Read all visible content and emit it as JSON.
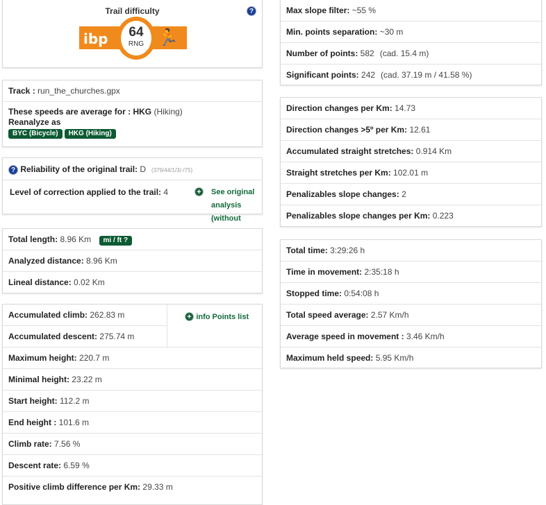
{
  "difficulty": {
    "title": "Trail difficulty",
    "score": "64",
    "unit": "RNG",
    "logo": "ibp",
    "colors": {
      "badge": "#f08a1c"
    }
  },
  "track": {
    "label": "Track :",
    "value": "run_the_churches.gpx"
  },
  "speeds": {
    "label": "These speeds are average for :",
    "code": "HKG",
    "mode": "(Hiking)",
    "reanalyze": "Reanalyze as",
    "buttons": [
      "BYC (Bicycle)",
      "HKG (Hiking)"
    ]
  },
  "reliability": {
    "label": "Reliability of the original trail:",
    "value": "D",
    "detail": "(379/44/1/3/-/75)"
  },
  "correction": {
    "label": "Level of correction applied to the trail:",
    "value": "4",
    "link": "See original analysis (without corrections)"
  },
  "lengths": [
    {
      "label": "Total length:",
      "value": "8.96 Km",
      "button": "mi / ft ?"
    },
    {
      "label": "Analyzed distance:",
      "value": "8.96 Km"
    },
    {
      "label": "Lineal distance:",
      "value": "0.02 Km"
    }
  ],
  "climb": [
    {
      "label": "Accumulated climb:",
      "value": "262.83 m"
    },
    {
      "label": "Accumulated descent:",
      "value": "275.74 m"
    }
  ],
  "points_link": "info Points list",
  "heights": [
    {
      "label": "Maximum height:",
      "value": "220.7 m"
    },
    {
      "label": "Minimal height:",
      "value": "23.22 m"
    },
    {
      "label": "Start height:",
      "value": "112.2 m"
    },
    {
      "label": "End height :",
      "value": "101.6 m"
    },
    {
      "label": "Climb rate:",
      "value": "7.56 %"
    },
    {
      "label": "Descent rate:",
      "value": "6.59 %"
    },
    {
      "label": "Positive climb difference per Km:",
      "value": "29.33 m"
    }
  ],
  "filters": [
    {
      "label": "Max slope filter:",
      "value": "~55 %"
    },
    {
      "label": "Min. points separation:",
      "value": "~30 m"
    },
    {
      "label": "Number of points:",
      "value": "582",
      "note": "(cad. 15.4 m)"
    },
    {
      "label": "Significant points:",
      "value": "242",
      "note": "(cad. 37.19 m / 41.58 %)"
    }
  ],
  "direction": [
    {
      "label": "Direction changes per Km:",
      "value": "14.73"
    },
    {
      "label": "Direction changes >5º per Km:",
      "value": "12.61"
    },
    {
      "label": "Accumulated straight stretches:",
      "value": "0.914 Km"
    },
    {
      "label": "Straight stretches per Km:",
      "value": "102.01 m"
    },
    {
      "label": "Penalizables slope changes:",
      "value": "2"
    },
    {
      "label": "Penalizables slope changes per Km:",
      "value": "0.223"
    }
  ],
  "times": [
    {
      "label": "Total time:",
      "value": "3:29:26 h"
    },
    {
      "label": "Time in movement:",
      "value": "2:35:18 h"
    },
    {
      "label": "Stopped time:",
      "value": "0:54:08 h"
    },
    {
      "label": "Total speed average:",
      "value": "2.57 Km/h"
    },
    {
      "label": "Average speed in movement :",
      "value": "3.46 Km/h"
    },
    {
      "label": "Maximum held speed:",
      "value": "5.95 Km/h"
    }
  ]
}
